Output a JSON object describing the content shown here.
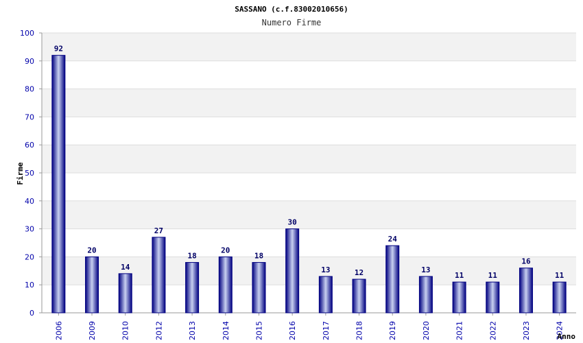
{
  "chart_data": {
    "type": "bar",
    "title": "SASSANO (c.f.83002010656)",
    "subtitle": "Numero Firme",
    "xlabel": "Anno",
    "ylabel": "Firme",
    "ylim": [
      0,
      100
    ],
    "yticks": [
      0,
      10,
      20,
      30,
      40,
      50,
      60,
      70,
      80,
      90,
      100
    ],
    "grid": true,
    "categories": [
      "2006",
      "2009",
      "2010",
      "2012",
      "2013",
      "2014",
      "2015",
      "2016",
      "2017",
      "2018",
      "2019",
      "2020",
      "2021",
      "2022",
      "2023",
      "2024"
    ],
    "values": [
      92,
      20,
      14,
      27,
      18,
      20,
      18,
      30,
      13,
      12,
      24,
      13,
      11,
      11,
      16,
      11
    ],
    "colors": {
      "bar_edge": "#000080",
      "bar_mid": "#c8d0f0",
      "band_alt": "#f2f2f2",
      "gridline": "#dddddd",
      "tick_text": "#0000aa",
      "label_text": "#000066"
    }
  }
}
